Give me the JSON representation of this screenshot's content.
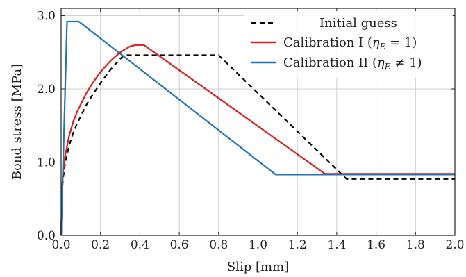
{
  "chart_data": {
    "type": "line",
    "title": "",
    "xlabel": "Slip [mm]",
    "ylabel": "Bond stress [MPa]",
    "xlim": [
      0,
      2.0
    ],
    "ylim": [
      0,
      3.1
    ],
    "xticks": [
      0,
      0.2,
      0.4,
      0.6,
      0.8,
      1.0,
      1.2,
      1.4,
      1.6,
      1.8,
      2.0
    ],
    "xtick_labels": [
      "0.0",
      "0.2",
      "0.4",
      "0.6",
      "0.8",
      "1.0",
      "1.2",
      "1.4",
      "1.6",
      "1.8",
      "2.0"
    ],
    "yticks": [
      0,
      1.0,
      2.0,
      3.0
    ],
    "ytick_labels": [
      "0.0",
      "1.0",
      "2.0",
      "3.0"
    ],
    "grid": true,
    "legend_position": "top-right",
    "series": [
      {
        "name": "Initial guess",
        "color": "#000000",
        "dash": "dashed",
        "x": [
          0,
          0.005,
          0.01,
          0.02,
          0.04,
          0.06,
          0.08,
          0.1,
          0.13,
          0.16,
          0.2,
          0.25,
          0.3,
          0.32,
          0.8,
          1.45,
          2.0
        ],
        "y": [
          0,
          0.62,
          0.78,
          0.98,
          1.22,
          1.39,
          1.52,
          1.63,
          1.79,
          1.92,
          2.08,
          2.26,
          2.41,
          2.46,
          2.46,
          0.77,
          0.77
        ]
      },
      {
        "name": "Calibration I",
        "legend_label": "Calibration I (η_E = 1)",
        "legend_parts": {
          "prefix": "Calibration I (",
          "eta": "η",
          "sub": "E",
          "relation": " = 1)"
        },
        "color": "#dd1c1c",
        "dash": "solid",
        "x": [
          0,
          0.005,
          0.01,
          0.02,
          0.04,
          0.06,
          0.08,
          0.1,
          0.13,
          0.16,
          0.2,
          0.25,
          0.3,
          0.35,
          0.38,
          0.42,
          1.34,
          2.0
        ],
        "y": [
          0,
          0.68,
          0.86,
          1.08,
          1.35,
          1.54,
          1.68,
          1.79,
          1.95,
          2.08,
          2.23,
          2.38,
          2.5,
          2.58,
          2.6,
          2.6,
          0.84,
          0.84
        ]
      },
      {
        "name": "Calibration II",
        "legend_label": "Calibration II (η_E ≠ 1)",
        "legend_parts": {
          "prefix": "Calibration II (",
          "eta": "η",
          "sub": "E",
          "relation": " ≠ 1)"
        },
        "color": "#1f74b8",
        "dash": "solid",
        "x": [
          0,
          0.03,
          0.09,
          1.09,
          2.0
        ],
        "y": [
          0,
          2.92,
          2.92,
          0.83,
          0.83
        ]
      }
    ]
  }
}
